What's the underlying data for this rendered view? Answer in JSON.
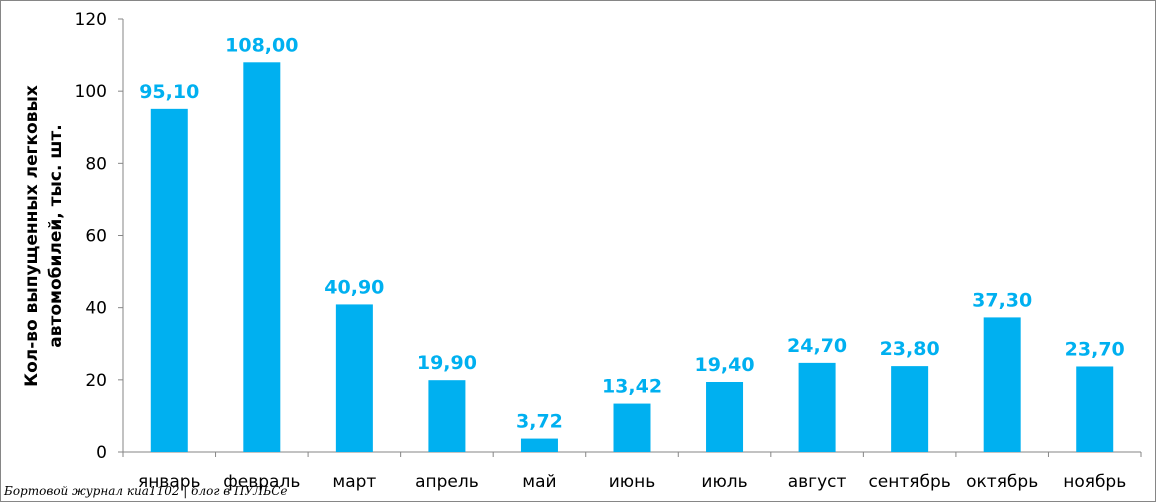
{
  "chart_data": {
    "type": "bar",
    "categories": [
      "январь",
      "февраль",
      "март",
      "апрель",
      "май",
      "июнь",
      "июль",
      "август",
      "сентябрь",
      "октябрь",
      "ноябрь"
    ],
    "values": [
      95.1,
      108.0,
      40.9,
      19.9,
      3.72,
      13.42,
      19.4,
      24.7,
      23.8,
      37.3,
      23.7
    ],
    "data_labels": [
      "95,10",
      "108,00",
      "40,90",
      "19,90",
      "3,72",
      "13,42",
      "19,40",
      "24,70",
      "23,80",
      "37,30",
      "23,70"
    ],
    "ylabel_lines": [
      "Кол-во выпущенных легковых",
      "автомобилей, тыс. шт."
    ],
    "ylim": [
      0,
      120
    ],
    "yticks": [
      0,
      20,
      40,
      60,
      80,
      100,
      120
    ],
    "grid": false,
    "legend": "none",
    "colors": {
      "bar": "#00B0F0",
      "data_label": "#00B0F0",
      "axis": "#868686"
    }
  },
  "watermark": "Бортовой журнал киа1102 | блог в ПУЛЬСе"
}
